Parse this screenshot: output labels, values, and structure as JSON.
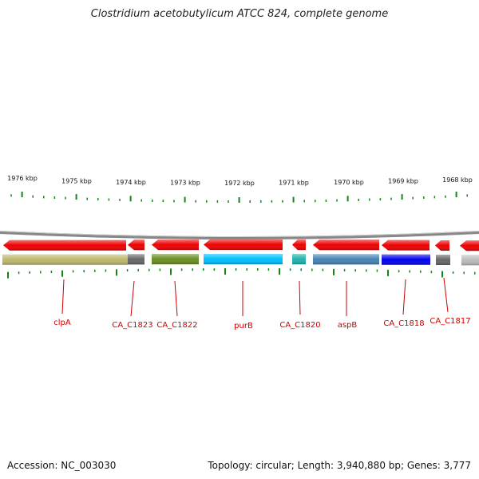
{
  "title": "Clostridium acetobutylicum ATCC 824, complete genome",
  "footer": {
    "accession": "Accession: NC_003030",
    "summary": "Topology: circular; Length: 3,940,880 bp; Genes: 3,777"
  },
  "colors": {
    "gene_arrow": "#ee0000",
    "tick": "#118811",
    "label": "#cc0000",
    "backbone": "#888888"
  },
  "kbp_labels": [
    "1976 kbp",
    "1975 kbp",
    "1974 kbp",
    "1973 kbp",
    "1972 kbp",
    "1971 kbp",
    "1970 kbp",
    "1969 kbp",
    "1968 kbp"
  ],
  "genes": [
    {
      "label": "clpA",
      "color": "#bdb76b"
    },
    {
      "label": "CA_C1823",
      "color": "#666666"
    },
    {
      "label": "CA_C1822",
      "color": "#6b8e23"
    },
    {
      "label": "purB",
      "color": "#00bfff"
    },
    {
      "label": "CA_C1820",
      "color": "#20b2aa"
    },
    {
      "label": "aspB",
      "color": "#4682b4"
    },
    {
      "label": "CA_C1818",
      "color": "#0000ee"
    },
    {
      "label": "CA_C1817",
      "color": "#666666"
    },
    {
      "label": "",
      "color": "#bbbbbb"
    }
  ]
}
